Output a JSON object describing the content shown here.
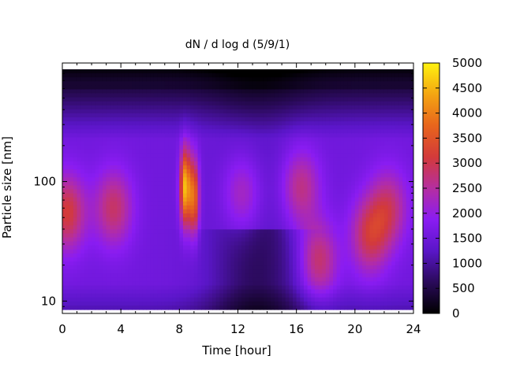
{
  "chart_data": {
    "type": "heatmap",
    "title": "dN / d log d (5/9/1)",
    "xlabel": "Time [hour]",
    "ylabel": "Particle size [nm]",
    "xlim": [
      0,
      24
    ],
    "ylim": [
      8.5,
      870
    ],
    "yscale": "log",
    "x_ticks": [
      0,
      4,
      8,
      12,
      16,
      20,
      24
    ],
    "x_tick_labels": [
      "0",
      "4",
      "8",
      "12",
      "16",
      "20",
      "24"
    ],
    "y_ticks": [
      10,
      100
    ],
    "y_tick_labels": [
      "10",
      "100"
    ],
    "colorbar": {
      "range": [
        0,
        5000
      ],
      "ticks": [
        0,
        500,
        1000,
        1500,
        2000,
        2500,
        3000,
        3500,
        4000,
        4500,
        5000
      ],
      "tick_labels": [
        "0",
        "500",
        "1000",
        "1500",
        "2000",
        "2500",
        "3000",
        "3500",
        "4000",
        "4500",
        "5000"
      ],
      "colormap": [
        "#000000",
        "#2a0a5a",
        "#5a16c8",
        "#8a1cf2",
        "#b52ea0",
        "#d33a3a",
        "#e8651c",
        "#f4a512",
        "#fff20f"
      ]
    },
    "grid": false,
    "features": [
      {
        "time": 0.3,
        "size": 55,
        "value": 3100
      },
      {
        "time": 3.5,
        "size": 60,
        "value": 2800
      },
      {
        "time": 8.4,
        "size": 90,
        "value": 4500
      },
      {
        "time": 9.0,
        "size": 75,
        "value": 3800
      },
      {
        "time": 12.3,
        "size": 80,
        "value": 2400
      },
      {
        "time": 16.3,
        "size": 90,
        "value": 2700
      },
      {
        "time": 17.5,
        "size": 22,
        "value": 2900
      },
      {
        "time": 21.0,
        "size": 35,
        "value": 2900
      },
      {
        "time": 22.3,
        "size": 60,
        "value": 2700
      }
    ]
  }
}
